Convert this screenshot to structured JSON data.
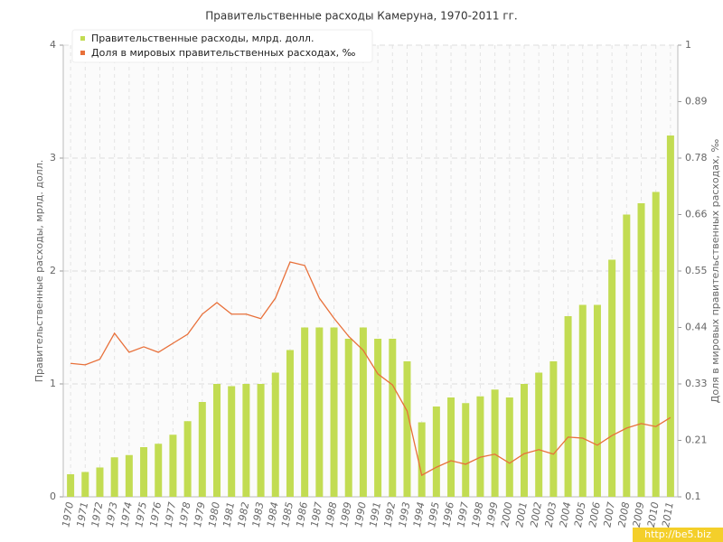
{
  "chart_data": {
    "type": "bar_line",
    "title": "Правительственные расходы Камеруна, 1970-2011 гг.",
    "y_label": "Правительственные расходы, мрлд. долл.",
    "y2_label": "Доля в мировых правительственных расходах, ‰",
    "watermark": "http://be5.biz",
    "categories": [
      "1970",
      "1971",
      "1972",
      "1973",
      "1974",
      "1975",
      "1976",
      "1977",
      "1978",
      "1979",
      "1980",
      "1981",
      "1982",
      "1983",
      "1984",
      "1985",
      "1986",
      "1987",
      "1988",
      "1989",
      "1990",
      "1991",
      "1992",
      "1993",
      "1994",
      "1995",
      "1996",
      "1997",
      "1998",
      "1999",
      "2000",
      "2001",
      "2002",
      "2003",
      "2004",
      "2005",
      "2006",
      "2007",
      "2008",
      "2009",
      "2010",
      "2011"
    ],
    "series": [
      {
        "name": "Правительственные расходы, млрд. долл.",
        "type": "bar",
        "color": "#c2dc52",
        "values": [
          0.2,
          0.22,
          0.26,
          0.35,
          0.37,
          0.44,
          0.47,
          0.55,
          0.67,
          0.84,
          1.0,
          0.98,
          1.0,
          1.0,
          1.1,
          1.3,
          1.5,
          1.5,
          1.5,
          1.4,
          1.5,
          1.4,
          1.4,
          1.2,
          0.66,
          0.8,
          0.88,
          0.83,
          0.89,
          0.95,
          0.88,
          1.0,
          1.1,
          1.2,
          1.6,
          1.7,
          1.7,
          2.1,
          2.5,
          2.6,
          2.7,
          3.2
        ]
      },
      {
        "name": "Доля в мировых правительственных расходах, ‰",
        "type": "line",
        "axis": "y2",
        "color": "#e8703a",
        "values": [
          0.366,
          0.363,
          0.374,
          0.426,
          0.388,
          0.399,
          0.388,
          0.406,
          0.424,
          0.464,
          0.487,
          0.464,
          0.464,
          0.455,
          0.496,
          0.568,
          0.561,
          0.496,
          0.456,
          0.42,
          0.392,
          0.345,
          0.323,
          0.271,
          0.143,
          0.159,
          0.172,
          0.165,
          0.179,
          0.185,
          0.167,
          0.186,
          0.194,
          0.185,
          0.219,
          0.217,
          0.203,
          0.222,
          0.237,
          0.246,
          0.24,
          0.258
        ]
      }
    ],
    "ylim": [
      0,
      4
    ],
    "yticks": [
      0,
      1,
      2,
      3,
      4
    ],
    "y2lim": [
      0.1,
      1
    ],
    "y2ticks": [
      0.1,
      {
        "value": 0.2125,
        "label": "0.21"
      },
      {
        "value": 0.325,
        "label": "0.33"
      },
      {
        "value": 0.4375,
        "label": "0.44"
      },
      0.55,
      {
        "value": 0.6625,
        "label": "0.66"
      },
      {
        "value": 0.775,
        "label": "0.78"
      },
      {
        "value": 0.8875,
        "label": "0.89"
      },
      1
    ],
    "grid": true,
    "legend": "top-left"
  }
}
